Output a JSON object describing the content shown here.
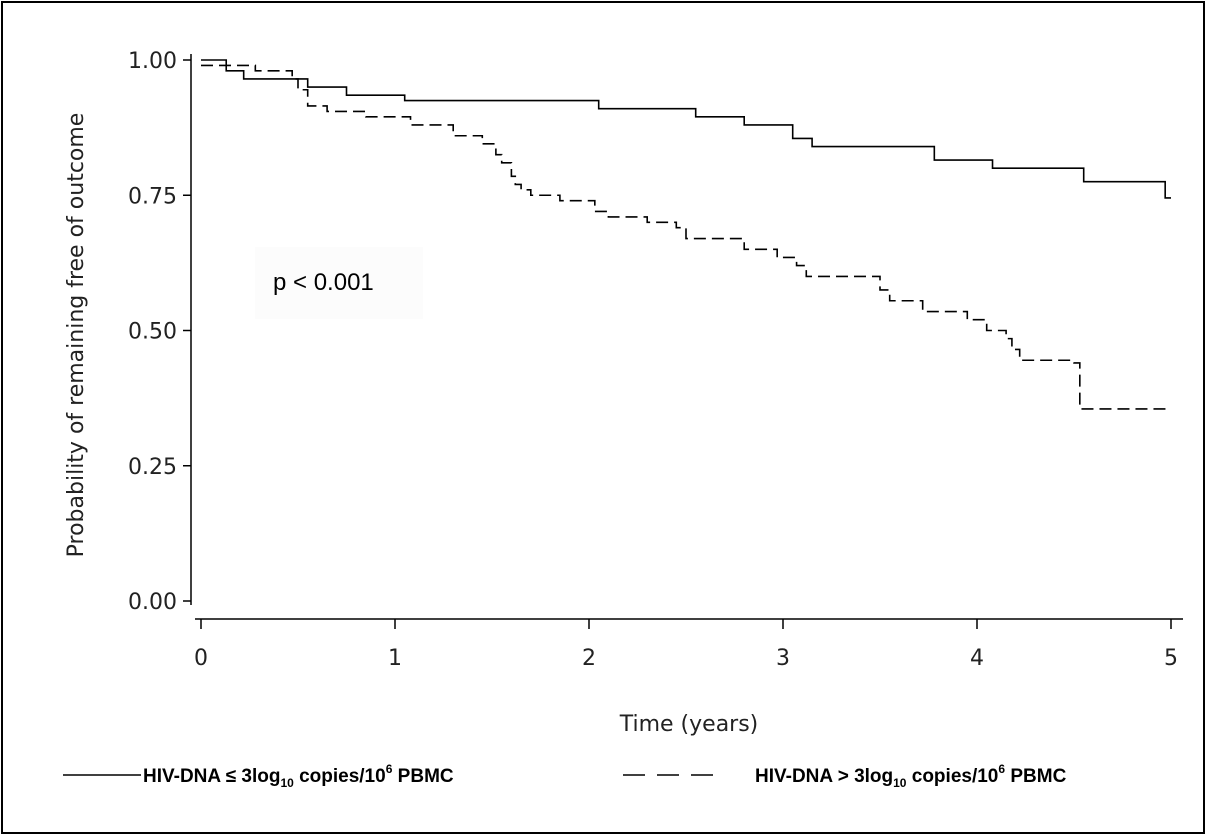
{
  "chart_data": {
    "type": "line",
    "step": true,
    "xlabel": "Time (years)",
    "ylabel": "Probability of remaining free of outcome",
    "xlim": [
      0,
      5
    ],
    "ylim": [
      0,
      1
    ],
    "x_ticks": [
      "0",
      "1",
      "2",
      "3",
      "4",
      "5"
    ],
    "y_ticks": [
      "0.00",
      "0.25",
      "0.50",
      "0.75",
      "1.00"
    ],
    "grid": false,
    "annotation": "p < 0.001",
    "series": [
      {
        "legend": {
          "prefix": "HIV-DNA ≤ 3log",
          "sub": "10",
          "mid": " copies/10",
          "sup": "6",
          "suffix": " PBMC"
        },
        "style": "solid",
        "color": "#000000",
        "x": [
          0,
          0.13,
          0.22,
          0.5,
          0.55,
          0.75,
          1.05,
          2.05,
          2.55,
          2.8,
          3.05,
          3.15,
          3.78,
          4.08,
          4.55,
          4.97,
          5.0
        ],
        "y": [
          1.0,
          0.98,
          0.965,
          0.965,
          0.95,
          0.935,
          0.925,
          0.91,
          0.895,
          0.88,
          0.855,
          0.84,
          0.815,
          0.8,
          0.775,
          0.745,
          0.745
        ]
      },
      {
        "legend": {
          "prefix": "HIV-DNA > 3log",
          "sub": "10",
          "mid": " copies/10",
          "sup": "6",
          "suffix": " PBMC"
        },
        "style": "dashed",
        "color": "#000000",
        "x": [
          0,
          0.15,
          0.28,
          0.47,
          0.5,
          0.55,
          0.65,
          0.85,
          1.08,
          1.3,
          1.45,
          1.52,
          1.55,
          1.6,
          1.62,
          1.65,
          1.7,
          1.85,
          2.03,
          2.1,
          2.3,
          2.45,
          2.5,
          2.8,
          2.97,
          3.07,
          3.12,
          3.5,
          3.55,
          3.72,
          3.95,
          4.05,
          4.15,
          4.18,
          4.22,
          4.5,
          4.53,
          5.0
        ],
        "y": [
          0.99,
          0.99,
          0.98,
          0.965,
          0.945,
          0.915,
          0.905,
          0.895,
          0.88,
          0.86,
          0.845,
          0.825,
          0.81,
          0.785,
          0.77,
          0.76,
          0.75,
          0.74,
          0.72,
          0.71,
          0.7,
          0.69,
          0.67,
          0.65,
          0.635,
          0.62,
          0.6,
          0.575,
          0.555,
          0.535,
          0.52,
          0.5,
          0.485,
          0.465,
          0.445,
          0.44,
          0.355,
          0.355
        ]
      }
    ]
  }
}
